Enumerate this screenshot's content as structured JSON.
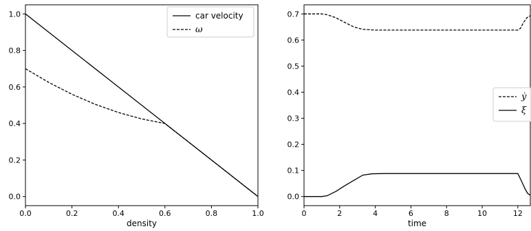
{
  "chart_data": [
    {
      "type": "line",
      "xlabel": "density",
      "ylabel": "",
      "xlim": [
        0.0,
        1.0
      ],
      "ylim": [
        -0.05,
        1.05
      ],
      "xticks": [
        "0.0",
        "0.2",
        "0.4",
        "0.6",
        "0.8",
        "1.0"
      ],
      "yticks": [
        "0.0",
        "0.2",
        "0.4",
        "0.6",
        "0.8",
        "1.0"
      ],
      "legend_position": "top-right",
      "series": [
        {
          "name": "car velocity",
          "style": "solid",
          "color": "#000000",
          "x": [
            0.0,
            0.2,
            0.4,
            0.6,
            0.8,
            1.0
          ],
          "y": [
            1.0,
            0.8,
            0.6,
            0.4,
            0.2,
            0.0
          ]
        },
        {
          "name": "ω",
          "style": "dashed",
          "color": "#000000",
          "x": [
            0.0,
            0.1,
            0.2,
            0.3,
            0.4,
            0.5,
            0.6,
            0.7,
            0.8,
            0.9,
            1.0
          ],
          "y": [
            0.7,
            0.625,
            0.56,
            0.505,
            0.46,
            0.425,
            0.4,
            0.3,
            0.2,
            0.1,
            0.0
          ]
        }
      ]
    },
    {
      "type": "line",
      "xlabel": "time",
      "ylabel": "",
      "xlim": [
        0.0,
        12.7
      ],
      "ylim": [
        -0.035,
        0.735
      ],
      "xticks": [
        "0",
        "2",
        "4",
        "6",
        "8",
        "10",
        "12"
      ],
      "yticks": [
        "0.0",
        "0.1",
        "0.2",
        "0.3",
        "0.4",
        "0.5",
        "0.6",
        "0.7"
      ],
      "legend_position": "center-right",
      "series": [
        {
          "name": "ẏ",
          "style": "dashed",
          "color": "#000000",
          "x": [
            0.0,
            1.0,
            1.3,
            1.8,
            2.3,
            2.8,
            3.3,
            4.0,
            6.0,
            8.0,
            10.0,
            12.0,
            12.15,
            12.3,
            12.5,
            12.7
          ],
          "y": [
            0.7,
            0.7,
            0.697,
            0.685,
            0.667,
            0.65,
            0.641,
            0.638,
            0.638,
            0.638,
            0.638,
            0.638,
            0.645,
            0.665,
            0.685,
            0.693
          ]
        },
        {
          "name": "ξ",
          "style": "solid",
          "color": "#000000",
          "x": [
            0.0,
            1.0,
            1.3,
            1.8,
            2.3,
            2.8,
            3.3,
            3.8,
            4.5,
            6.0,
            8.0,
            10.0,
            12.0,
            12.2,
            12.4,
            12.55,
            12.7
          ],
          "y": [
            0.0,
            0.0,
            0.003,
            0.02,
            0.042,
            0.062,
            0.082,
            0.087,
            0.088,
            0.088,
            0.088,
            0.088,
            0.088,
            0.06,
            0.03,
            0.012,
            0.005
          ]
        }
      ]
    }
  ]
}
